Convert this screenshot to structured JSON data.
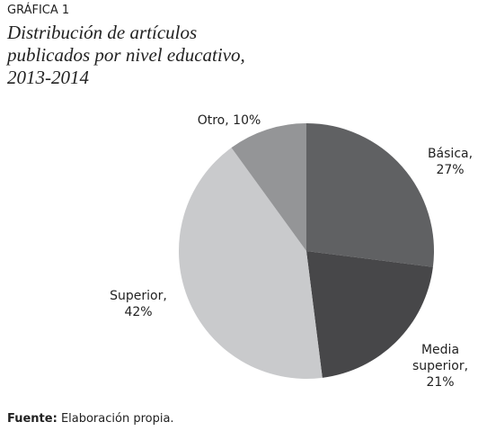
{
  "header": {
    "label": "GRÁFICA 1",
    "title": "Distribución de artículos publicados por nivel educativo, 2013-2014"
  },
  "chart_data": {
    "type": "pie",
    "categories": [
      "Básica,",
      "Media superior,",
      "Superior,",
      "Otro,"
    ],
    "values": [
      27,
      21,
      42,
      10
    ],
    "value_labels": [
      "27%",
      "21%",
      "42%",
      "10%"
    ],
    "colors": [
      "#606163",
      "#474749",
      "#c9cacc",
      "#949597"
    ]
  },
  "footer": {
    "source_label": "Fuente:",
    "source_text": "Elaboración propia."
  }
}
